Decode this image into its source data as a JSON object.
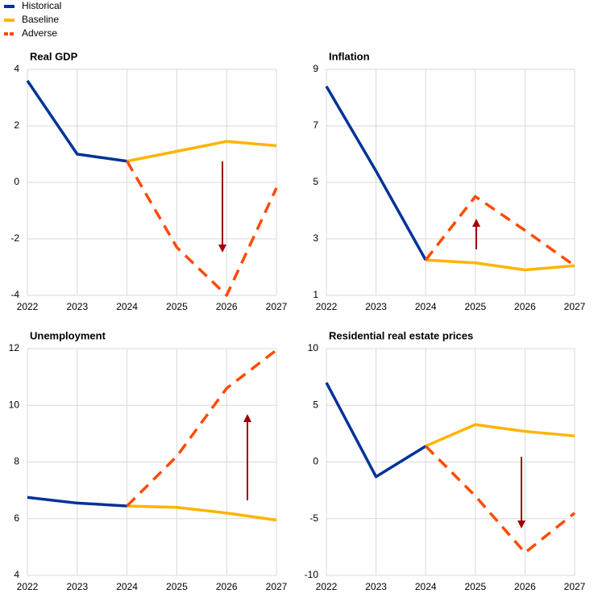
{
  "chart_data": [
    {
      "type": "line",
      "title": "Real GDP",
      "categories": [
        "2022",
        "2023",
        "2024",
        "2025",
        "2026",
        "2027"
      ],
      "ylim": [
        -4,
        4
      ],
      "yticks": [
        -4,
        -2,
        0,
        2,
        4
      ],
      "grid": true,
      "series": [
        {
          "name": "Historical",
          "color": "#003299",
          "dashed": false,
          "values": [
            3.6,
            1.0,
            0.75,
            null,
            null,
            null
          ]
        },
        {
          "name": "Baseline",
          "color": "#ffb400",
          "dashed": false,
          "values": [
            null,
            null,
            0.75,
            1.1,
            1.45,
            1.3
          ]
        },
        {
          "name": "Adverse",
          "color": "#ff4b00",
          "dashed": true,
          "values": [
            null,
            null,
            0.75,
            -2.3,
            -4.0,
            -0.2
          ]
        }
      ]
    },
    {
      "type": "line",
      "title": "Inflation",
      "categories": [
        "2022",
        "2023",
        "2024",
        "2025",
        "2026",
        "2027"
      ],
      "ylim": [
        1,
        9
      ],
      "yticks": [
        1,
        3,
        5,
        7,
        9
      ],
      "grid": true,
      "series": [
        {
          "color": "#003299",
          "dashed": false,
          "values": [
            8.4,
            5.4,
            2.25,
            null,
            null,
            null
          ]
        },
        {
          "color": "#ffb400",
          "dashed": false,
          "values": [
            null,
            null,
            2.25,
            2.15,
            1.9,
            2.05
          ]
        },
        {
          "color": "#ff4b00",
          "dashed": true,
          "values": [
            null,
            null,
            2.25,
            4.5,
            3.3,
            2.05
          ]
        }
      ]
    },
    {
      "type": "line",
      "title": "Unemployment",
      "categories": [
        "2022",
        "2023",
        "2024",
        "2025",
        "2026",
        "2027"
      ],
      "ylim": [
        4,
        12
      ],
      "yticks": [
        4,
        6,
        8,
        10,
        12
      ],
      "grid": true,
      "series": [
        {
          "color": "#003299",
          "dashed": false,
          "values": [
            6.75,
            6.55,
            6.45,
            null,
            null,
            null
          ]
        },
        {
          "color": "#ffb400",
          "dashed": false,
          "values": [
            null,
            null,
            6.45,
            6.4,
            6.2,
            5.95
          ]
        },
        {
          "color": "#ff4b00",
          "dashed": true,
          "values": [
            null,
            null,
            6.45,
            8.2,
            10.6,
            11.95
          ]
        }
      ]
    },
    {
      "type": "line",
      "title": "Residential real estate prices",
      "categories": [
        "2022",
        "2023",
        "2024",
        "2025",
        "2026",
        "2027"
      ],
      "ylim": [
        -10,
        10
      ],
      "yticks": [
        -10,
        -5,
        0,
        5,
        10
      ],
      "grid": true,
      "series": [
        {
          "color": "#003299",
          "dashed": false,
          "values": [
            7.0,
            -1.3,
            1.4,
            null,
            null,
            null
          ]
        },
        {
          "color": "#ffb400",
          "dashed": false,
          "values": [
            null,
            null,
            1.4,
            3.3,
            2.7,
            2.3
          ]
        },
        {
          "color": "#ff4b00",
          "dashed": true,
          "values": [
            null,
            null,
            1.4,
            -3.0,
            -8.0,
            -4.5
          ]
        }
      ]
    }
  ]
}
